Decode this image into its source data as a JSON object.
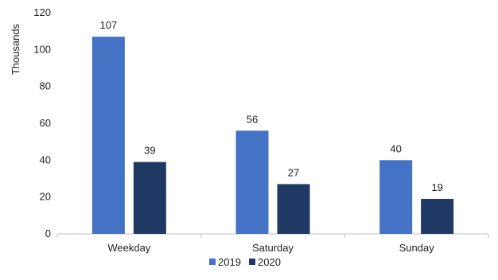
{
  "chart_data": {
    "type": "bar",
    "title": "",
    "xlabel": "",
    "ylabel": "Thousands",
    "categories": [
      "Weekday",
      "Saturday",
      "Sunday"
    ],
    "series": [
      {
        "name": "2019",
        "color": "#4472C4",
        "values": [
          107,
          56,
          40
        ]
      },
      {
        "name": "2020",
        "color": "#1F3864",
        "values": [
          39,
          27,
          19
        ]
      }
    ],
    "ylim": [
      0,
      120
    ],
    "yticks": [
      0,
      20,
      40,
      60,
      80,
      100,
      120
    ],
    "grid": false,
    "legend_position": "bottom-center"
  }
}
